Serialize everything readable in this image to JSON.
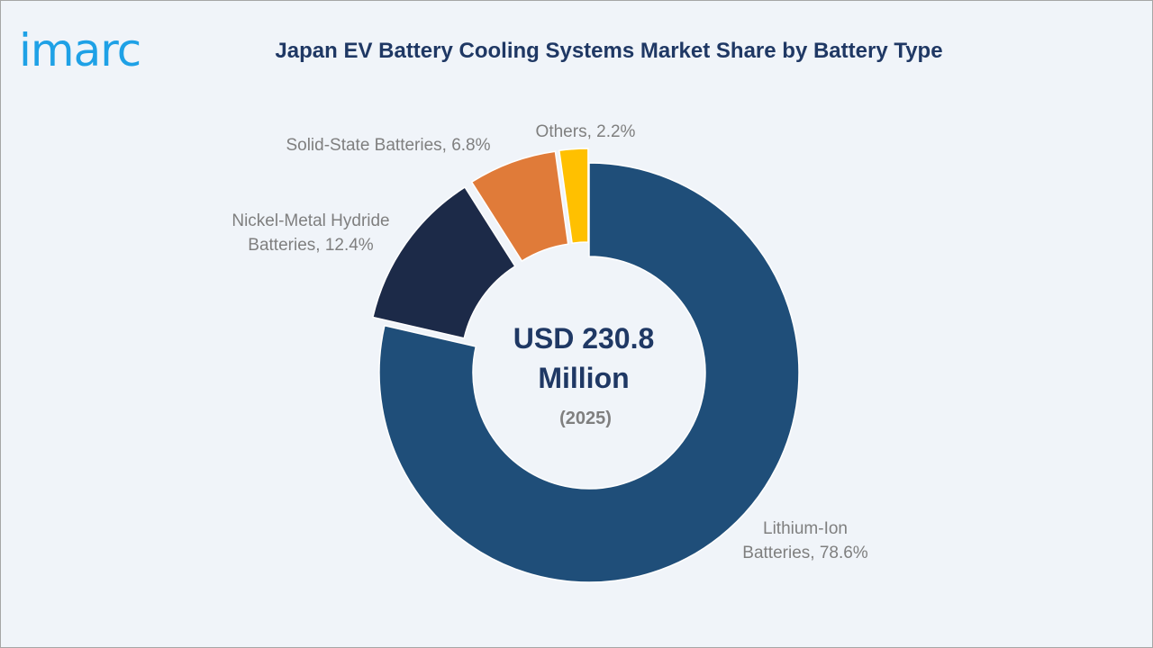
{
  "brand": {
    "logo_text": "imarc",
    "logo_color": "#1ea1e6"
  },
  "chart_data": {
    "type": "pie",
    "title": "Japan EV Battery Cooling Systems Market Share by Battery Type",
    "center_value": [
      "USD 230.8",
      "Million"
    ],
    "center_year": "(2025)",
    "slices": [
      {
        "label": [
          "Lithium-Ion",
          "Batteries, 78.6%"
        ],
        "category": "Lithium-Ion Batteries",
        "value": 78.6,
        "color": "#1f4e79",
        "exploded": false
      },
      {
        "label": [
          "Nickel-Metal Hydride",
          "Batteries, 12.4%"
        ],
        "category": "Nickel-Metal Hydride Batteries",
        "value": 12.4,
        "color": "#1c2a48",
        "exploded": true
      },
      {
        "label": [
          "Solid-State Batteries, 6.8%"
        ],
        "category": "Solid-State Batteries",
        "value": 6.8,
        "color": "#e07b39",
        "exploded": true
      },
      {
        "label": [
          "Others, 2.2%"
        ],
        "category": "Others",
        "value": 2.2,
        "color": "#ffc000",
        "exploded": true
      }
    ]
  }
}
